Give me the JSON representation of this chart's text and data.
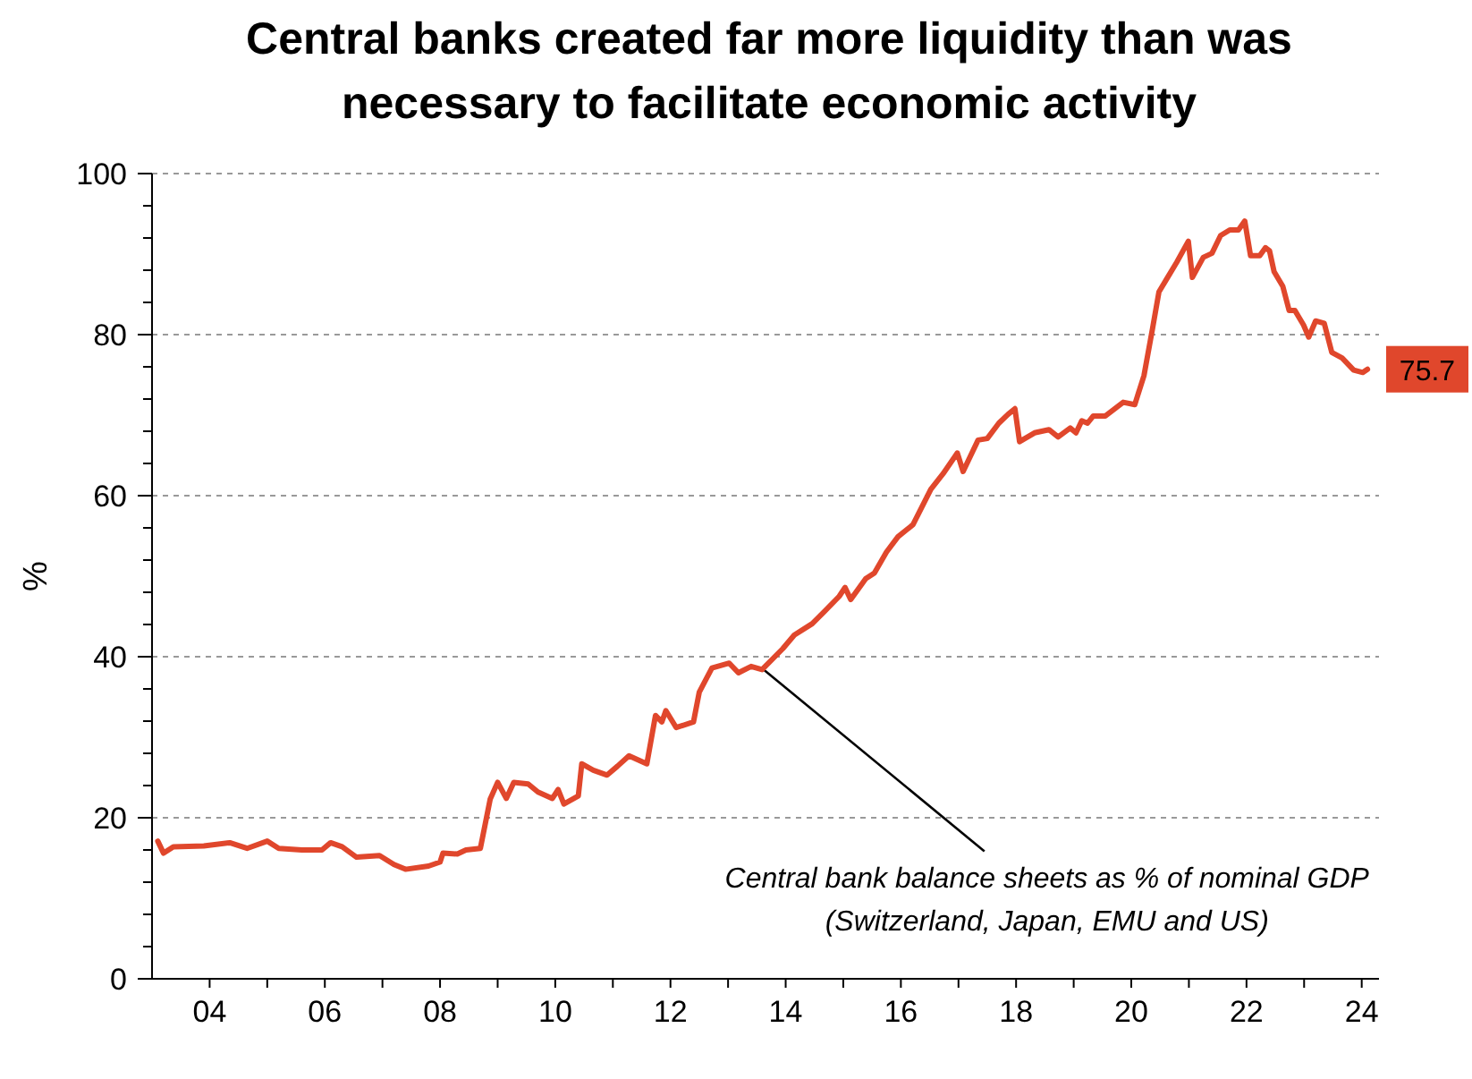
{
  "chart_data": {
    "type": "line",
    "title": "Central banks created far more liquidity than was\nnecessary to facilitate economic activity",
    "ylabel": "%",
    "xlim": [
      2003,
      2024.3
    ],
    "xticks": [
      {
        "value": 2004,
        "label": "04"
      },
      {
        "value": 2005,
        "label": null
      },
      {
        "value": 2006,
        "label": "06"
      },
      {
        "value": 2007,
        "label": null
      },
      {
        "value": 2008,
        "label": "08"
      },
      {
        "value": 2009,
        "label": null
      },
      {
        "value": 2010,
        "label": "10"
      },
      {
        "value": 2011,
        "label": null
      },
      {
        "value": 2012,
        "label": "12"
      },
      {
        "value": 2013,
        "label": null
      },
      {
        "value": 2014,
        "label": "14"
      },
      {
        "value": 2015,
        "label": null
      },
      {
        "value": 2016,
        "label": "16"
      },
      {
        "value": 2017,
        "label": null
      },
      {
        "value": 2018,
        "label": "18"
      },
      {
        "value": 2019,
        "label": null
      },
      {
        "value": 2020,
        "label": "20"
      },
      {
        "value": 2021,
        "label": null
      },
      {
        "value": 2022,
        "label": "22"
      },
      {
        "value": 2023,
        "label": null
      },
      {
        "value": 2024,
        "label": "24"
      }
    ],
    "ylim": [
      0,
      100
    ],
    "yticks": [
      0,
      {
        "value": 4,
        "label": null
      },
      {
        "value": 8,
        "label": null
      },
      {
        "value": 12,
        "label": null
      },
      {
        "value": 16,
        "label": null
      },
      20,
      {
        "value": 24,
        "label": null
      },
      {
        "value": 28,
        "label": null
      },
      {
        "value": 32,
        "label": null
      },
      {
        "value": 36,
        "label": null
      },
      40,
      {
        "value": 44,
        "label": null
      },
      {
        "value": 48,
        "label": null
      },
      {
        "value": 52,
        "label": null
      },
      {
        "value": 56,
        "label": null
      },
      60,
      {
        "value": 64,
        "label": null
      },
      {
        "value": 68,
        "label": null
      },
      {
        "value": 72,
        "label": null
      },
      {
        "value": 76,
        "label": null
      },
      80,
      {
        "value": 84,
        "label": null
      },
      {
        "value": 88,
        "label": null
      },
      {
        "value": 92,
        "label": null
      },
      {
        "value": 96,
        "label": null
      },
      100
    ],
    "grid": "y",
    "line_style": "solid",
    "marker": "none",
    "annotations": [
      {
        "text": "Central bank balance sheets as % of nominal GDP\n(Switzerland, Japan, EMU and US)",
        "x": 2013.6,
        "y": 38.5
      }
    ],
    "series": [
      {
        "color": "#e0472c",
        "x": [
          2003.1,
          2003.2,
          2003.37,
          2003.9,
          2004.35,
          2004.65,
          2005.0,
          2005.2,
          2005.6,
          2005.95,
          2006.1,
          2006.3,
          2006.55,
          2006.95,
          2007.2,
          2007.4,
          2007.8,
          2008.0,
          2008.05,
          2008.3,
          2008.45,
          2008.7,
          2008.87,
          2009.0,
          2009.15,
          2009.28,
          2009.53,
          2009.7,
          2009.95,
          2010.05,
          2010.15,
          2010.4,
          2010.46,
          2010.66,
          2010.9,
          2011.08,
          2011.28,
          2011.59,
          2011.74,
          2011.85,
          2011.92,
          2012.1,
          2012.4,
          2012.5,
          2012.72,
          2013.02,
          2013.18,
          2013.4,
          2013.59,
          2013.95,
          2014.15,
          2014.46,
          2014.67,
          2014.93,
          2015.03,
          2015.13,
          2015.39,
          2015.54,
          2015.75,
          2015.95,
          2016.21,
          2016.52,
          2016.73,
          2016.98,
          2017.08,
          2017.34,
          2017.5,
          2017.7,
          2017.86,
          2017.98,
          2018.06,
          2018.32,
          2018.57,
          2018.73,
          2018.94,
          2019.04,
          2019.14,
          2019.24,
          2019.34,
          2019.55,
          2019.86,
          2020.06,
          2020.22,
          2020.37,
          2020.48,
          2020.63,
          2020.79,
          2020.99,
          2021.06,
          2021.25,
          2021.4,
          2021.55,
          2021.71,
          2021.86,
          2021.97,
          2022.07,
          2022.23,
          2022.33,
          2022.4,
          2022.48,
          2022.63,
          2022.74,
          2022.84,
          2022.99,
          2023.08,
          2023.2,
          2023.35,
          2023.48,
          2023.66,
          2023.86,
          2024.02,
          2024.1
        ],
        "values": [
          17.1,
          15.6,
          16.4,
          16.5,
          16.9,
          16.2,
          17.1,
          16.2,
          16,
          16,
          16.9,
          16.4,
          15.1,
          15.3,
          14.2,
          13.6,
          14,
          14.5,
          15.6,
          15.5,
          16,
          16.2,
          22.3,
          24.4,
          22.4,
          24.4,
          24.2,
          23.2,
          22.4,
          23.5,
          21.7,
          22.7,
          26.7,
          25.9,
          25.3,
          26.4,
          27.7,
          26.7,
          32.7,
          31.9,
          33.3,
          31.2,
          31.9,
          35.6,
          38.6,
          39.2,
          38,
          38.8,
          38.4,
          41,
          42.7,
          44.1,
          45.6,
          47.5,
          48.6,
          47.1,
          49.7,
          50.4,
          53,
          54.9,
          56.4,
          60.8,
          62.7,
          65.3,
          63,
          66.9,
          67.1,
          69,
          70.1,
          70.8,
          66.7,
          67.8,
          68.2,
          67.3,
          68.4,
          67.8,
          69.3,
          69,
          69.9,
          69.9,
          71.6,
          71.3,
          74.9,
          80.8,
          85.3,
          87.1,
          89,
          91.6,
          87.1,
          89.6,
          90.1,
          92.3,
          93,
          93,
          94.1,
          89.8,
          89.8,
          90.8,
          90.4,
          87.8,
          86,
          83,
          83,
          81.2,
          79.7,
          81.7,
          81.4,
          77.8,
          77.1,
          75.6,
          75.3,
          75.7
        ],
        "value_labels": [
          null,
          null,
          null,
          null,
          null,
          null,
          null,
          null,
          null,
          null,
          null,
          null,
          null,
          null,
          null,
          null,
          null,
          null,
          null,
          null,
          null,
          null,
          null,
          null,
          null,
          null,
          null,
          null,
          null,
          null,
          null,
          null,
          null,
          null,
          null,
          null,
          null,
          null,
          null,
          null,
          null,
          null,
          null,
          null,
          null,
          null,
          null,
          null,
          null,
          null,
          null,
          null,
          null,
          null,
          null,
          null,
          null,
          null,
          null,
          null,
          null,
          null,
          null,
          null,
          null,
          null,
          null,
          null,
          null,
          null,
          null,
          null,
          null,
          null,
          null,
          null,
          null,
          null,
          null,
          null,
          null,
          null,
          null,
          null,
          null,
          null,
          null,
          null,
          null,
          null,
          null,
          null,
          null,
          null,
          null,
          null,
          null,
          null,
          null,
          null,
          null,
          null,
          null,
          null,
          null,
          null,
          null,
          null,
          null,
          null,
          null,
          "75.7"
        ]
      }
    ]
  }
}
